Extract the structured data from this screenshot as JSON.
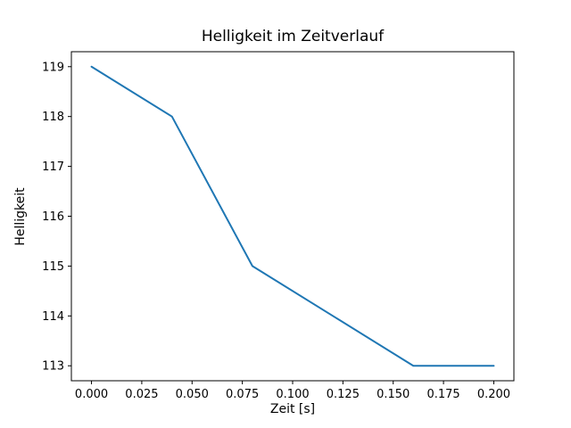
{
  "chart_data": {
    "type": "line",
    "title": "Helligkeit im Zeitverlauf",
    "xlabel": "Zeit [s]",
    "ylabel": "Helligkeit",
    "x": [
      0.0,
      0.04,
      0.08,
      0.12,
      0.16,
      0.2
    ],
    "values": [
      119,
      118,
      115,
      114,
      113,
      113
    ],
    "series_name": "Helligkeit",
    "xlim": [
      -0.01,
      0.21
    ],
    "ylim": [
      112.7,
      119.3
    ],
    "x_ticks": [
      0.0,
      0.025,
      0.05,
      0.075,
      0.1,
      0.125,
      0.15,
      0.175,
      0.2
    ],
    "x_tick_labels": [
      "0.000",
      "0.025",
      "0.050",
      "0.075",
      "0.100",
      "0.125",
      "0.150",
      "0.175",
      "0.200"
    ],
    "y_ticks": [
      113,
      114,
      115,
      116,
      117,
      118,
      119
    ],
    "y_tick_labels": [
      "113",
      "114",
      "115",
      "116",
      "117",
      "118",
      "119"
    ],
    "line_color": "#1f77b4",
    "axis_color": "#000000",
    "background_color": "#ffffff",
    "grid": false,
    "legend": null
  }
}
